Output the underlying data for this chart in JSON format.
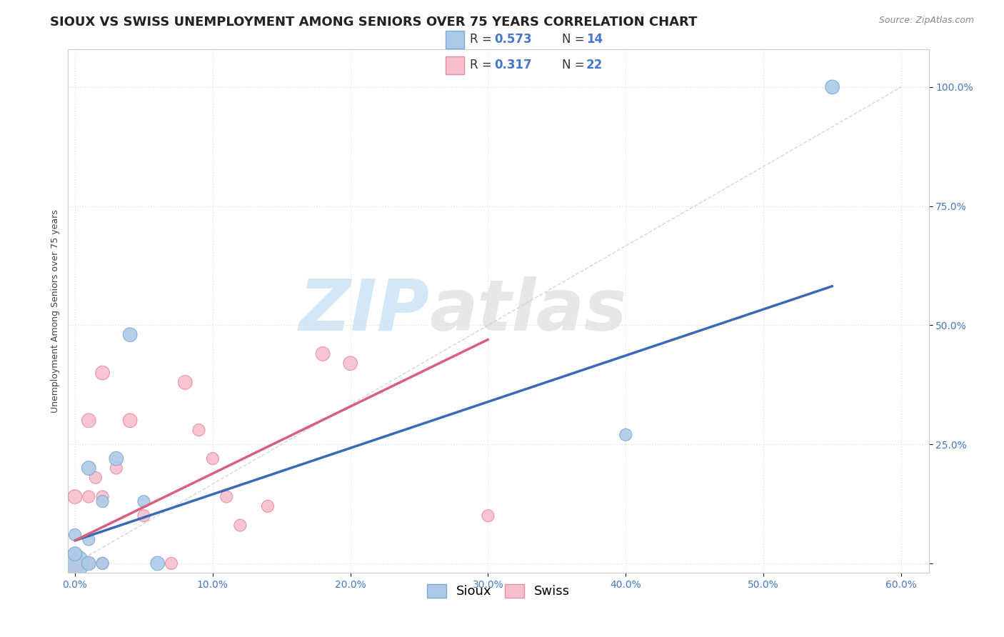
{
  "title": "SIOUX VS SWISS UNEMPLOYMENT AMONG SENIORS OVER 75 YEARS CORRELATION CHART",
  "source": "Source: ZipAtlas.com",
  "ylabel": "Unemployment Among Seniors over 75 years",
  "xlabel": "",
  "xlim": [
    -0.005,
    0.62
  ],
  "ylim": [
    -0.02,
    1.08
  ],
  "xticks": [
    0.0,
    0.1,
    0.2,
    0.3,
    0.4,
    0.5,
    0.6
  ],
  "yticks": [
    0.0,
    0.25,
    0.5,
    0.75,
    1.0
  ],
  "xticklabels": [
    "0.0%",
    "10.0%",
    "20.0%",
    "30.0%",
    "40.0%",
    "50.0%",
    "60.0%"
  ],
  "yticklabels": [
    "",
    "25.0%",
    "50.0%",
    "75.0%",
    "100.0%"
  ],
  "sioux_x": [
    0.0,
    0.0,
    0.0,
    0.01,
    0.01,
    0.01,
    0.02,
    0.02,
    0.03,
    0.04,
    0.05,
    0.06,
    0.4,
    0.55
  ],
  "sioux_y": [
    0.0,
    0.02,
    0.06,
    0.0,
    0.05,
    0.2,
    0.0,
    0.13,
    0.22,
    0.48,
    0.13,
    0.0,
    0.27,
    1.0
  ],
  "swiss_x": [
    0.0,
    0.0,
    0.01,
    0.01,
    0.01,
    0.015,
    0.02,
    0.02,
    0.02,
    0.03,
    0.04,
    0.05,
    0.07,
    0.08,
    0.09,
    0.1,
    0.11,
    0.12,
    0.14,
    0.18,
    0.2,
    0.3
  ],
  "swiss_y": [
    0.0,
    0.14,
    0.0,
    0.14,
    0.3,
    0.18,
    0.0,
    0.14,
    0.4,
    0.2,
    0.3,
    0.1,
    0.0,
    0.38,
    0.28,
    0.22,
    0.14,
    0.08,
    0.12,
    0.44,
    0.42,
    0.1
  ],
  "sioux_color": "#adc9e8",
  "swiss_color": "#f5bfcc",
  "sioux_edge": "#7aaad4",
  "swiss_edge": "#e88aa0",
  "sioux_line_color": "#3a6ab5",
  "swiss_line_color": "#d95f7f",
  "ref_line_color": "#cccccc",
  "sioux_R": 0.573,
  "sioux_N": 14,
  "swiss_R": 0.317,
  "swiss_N": 22,
  "background_color": "#ffffff",
  "grid_color": "#e0e0e0",
  "watermark_color": "#cce5f5",
  "title_fontsize": 13,
  "label_fontsize": 9,
  "tick_fontsize": 10,
  "legend_fontsize": 13,
  "source_fontsize": 9,
  "sioux_line_x": [
    0.0,
    0.55
  ],
  "sioux_line_y": [
    0.048,
    0.582
  ],
  "swiss_line_x": [
    0.0,
    0.3
  ],
  "swiss_line_y": [
    0.048,
    0.47
  ]
}
